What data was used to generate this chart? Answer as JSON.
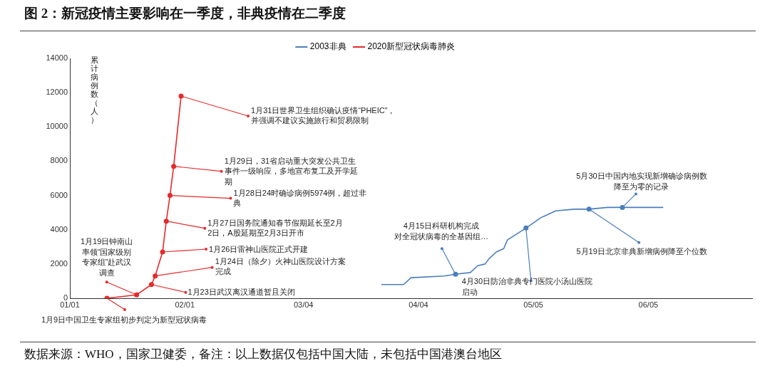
{
  "chart_data": {
    "type": "line",
    "title": "图 2：新冠疫情主要影响在一季度，非典疫情在二季度",
    "ylabel": "累计病例数（人）",
    "xlim": [
      "--01-01",
      "--07-03"
    ],
    "xticks": [
      {
        "value": "--01-01",
        "label": "01/01"
      },
      {
        "value": "--02-01",
        "label": "02/01"
      },
      {
        "value": "--03-04",
        "label": "03/04"
      },
      {
        "value": "--04-04",
        "label": "04/04"
      },
      {
        "value": "--05-05",
        "label": "05/05"
      },
      {
        "value": "--06-05",
        "label": "06/05"
      }
    ],
    "ylim": [
      0,
      14000
    ],
    "yticks": [
      0,
      2000,
      4000,
      6000,
      8000,
      10000,
      12000,
      14000
    ],
    "grid": false,
    "legend": "top",
    "line_style": "solid",
    "series": [
      {
        "name": "2003非典",
        "color": "#4a7ebb",
        "marker": "none",
        "x": [
          "--03-25",
          "--03-31",
          "--04-02",
          "--04-11",
          "--04-14",
          "--04-18",
          "--04-20",
          "--04-22",
          "--04-23",
          "--04-25",
          "--04-27",
          "--04-28",
          "--05-03",
          "--05-07",
          "--05-11",
          "--05-16",
          "--05-20",
          "--05-25",
          "--05-29",
          "--06-09"
        ],
        "values": [
          800,
          800,
          1200,
          1300,
          1400,
          1500,
          1900,
          2000,
          2300,
          2700,
          2900,
          3400,
          4100,
          4700,
          5100,
          5200,
          5200,
          5300,
          5300,
          5300
        ]
      },
      {
        "name": "2020新型冠状病毒肺炎",
        "color": "#e52a2a",
        "marker": "circle",
        "x": [
          "--01-11",
          "--01-19",
          "--01-23",
          "--01-24",
          "--01-26",
          "--01-27",
          "--01-28",
          "--01-29",
          "--01-31"
        ],
        "values": [
          0,
          200,
          800,
          1300,
          2700,
          4500,
          6000,
          7700,
          11800
        ]
      }
    ],
    "annotations": [
      {
        "text": "1月9日中国卫生专家组初步判定为新型冠状病毒",
        "x": "--01-11",
        "y": 0
      },
      {
        "text": "1月19日钟南山率领“国家级别专家组”赴武汉调查",
        "x": "--01-19",
        "y": 200
      },
      {
        "text": "1月23日武汉离汉通道暂且关闭",
        "x": "--01-23",
        "y": 800
      },
      {
        "text": "1月24日（除夕）火神山医院设计方案完成",
        "x": "--01-24",
        "y": 1300
      },
      {
        "text": "1月26日雷神山医院正式开建",
        "x": "--01-26",
        "y": 2700
      },
      {
        "text": "1月27日国务院通知春节假期延长至2月2日，A股延期至2月3日开市",
        "x": "--01-27",
        "y": 4500
      },
      {
        "text": "1月28日24时确诊病例5974例，超过非典",
        "x": "--01-28",
        "y": 6000
      },
      {
        "text": "1月29日，31省启动重大突发公共卫生事件一级响应，多地宣布复工及开学延期",
        "x": "--01-29",
        "y": 7700
      },
      {
        "text": "1月31日世界卫生组织确认疫情“PHEIC”，并强调不建议实施旅行和贸易限制",
        "x": "--01-31",
        "y": 11800
      },
      {
        "text": "4月15日科研机构完成对全冠状病毒的全基因组…",
        "x": "--04-14",
        "y": 1400
      },
      {
        "text": "4月30日防治非典专门医院小汤山医院启动",
        "x": "--05-03",
        "y": 4100
      },
      {
        "text": "5月19日北京非典新增病例降至个位数",
        "x": "--05-20",
        "y": 5200
      },
      {
        "text": "5月30日中国内地实现新增确诊病例数降至为零的记录",
        "x": "--05-29",
        "y": 5300
      },
      "数据来源：WHO，国家卫健委，备注：以上数据仅包括中国大陆，未包括中国港澳台地区"
    ]
  }
}
